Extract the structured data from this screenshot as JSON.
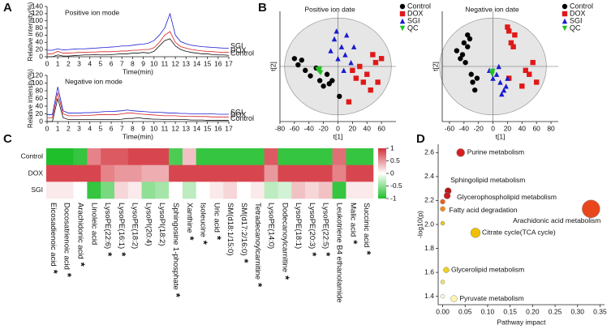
{
  "chart_data": [
    {
      "type": "line",
      "panel": "A",
      "title": "Positive ion mode",
      "x_label": "Time(min)",
      "y_label": "Relative intensity(%)",
      "x": [
        0,
        0.5,
        1,
        1.5,
        2,
        2.5,
        3,
        3.5,
        4,
        4.5,
        5,
        5.5,
        6,
        6.5,
        7,
        7.5,
        8,
        8.5,
        9,
        9.5,
        10,
        10.5,
        11,
        11.5,
        12,
        12.5,
        13,
        13.5,
        14,
        14.5,
        15,
        15.5,
        16,
        16.5,
        17
      ],
      "xlim": [
        0,
        17
      ],
      "xticks": [
        0,
        1,
        2,
        3,
        4,
        5,
        6,
        7,
        8,
        9,
        10,
        11,
        12,
        13,
        14,
        15,
        16,
        17
      ],
      "ylim": [
        0,
        140
      ],
      "yticks": [
        0,
        20,
        40,
        60,
        80,
        100,
        120,
        140
      ],
      "series": [
        {
          "name": "SGI",
          "color": "#1f1fd6",
          "values": [
            18,
            18,
            22,
            19,
            20,
            21,
            22,
            22,
            23,
            24,
            25,
            26,
            27,
            28,
            30,
            30,
            32,
            34,
            35,
            38,
            45,
            60,
            80,
            120,
            60,
            42,
            36,
            32,
            30,
            28,
            27,
            26,
            25,
            24,
            24
          ]
        },
        {
          "name": "DOX",
          "color": "#d62020",
          "values": [
            8,
            8,
            15,
            10,
            10,
            11,
            12,
            12,
            13,
            13,
            14,
            14,
            14,
            15,
            16,
            16,
            18,
            18,
            20,
            20,
            25,
            40,
            60,
            70,
            40,
            28,
            24,
            20,
            18,
            16,
            15,
            14,
            13,
            12,
            12
          ]
        },
        {
          "name": "Control",
          "color": "#111111",
          "values": [
            0,
            0,
            5,
            2,
            2,
            3,
            4,
            5,
            5,
            6,
            5,
            5,
            6,
            7,
            8,
            8,
            10,
            10,
            12,
            10,
            15,
            30,
            45,
            50,
            30,
            20,
            15,
            12,
            10,
            8,
            8,
            6,
            5,
            5,
            4
          ]
        }
      ]
    },
    {
      "type": "line",
      "title": "Negative ion mode",
      "x_label": "Time(min)",
      "y_label": "Relative intensity(%)",
      "x": [
        0,
        0.5,
        1,
        1.5,
        2,
        2.5,
        3,
        3.5,
        4,
        4.5,
        5,
        5.5,
        6,
        6.5,
        7,
        7.5,
        8,
        8.5,
        9,
        9.5,
        10,
        10.5,
        11,
        11.5,
        12,
        12.5,
        13,
        13.5,
        14,
        14.5,
        15,
        15.5,
        16,
        16.5,
        17
      ],
      "xlim": [
        0,
        17
      ],
      "xticks": [
        0,
        1,
        2,
        3,
        4,
        5,
        6,
        7,
        8,
        9,
        10,
        11,
        12,
        13,
        14,
        15,
        16,
        17
      ],
      "ylim": [
        0,
        120
      ],
      "yticks": [
        0,
        20,
        40,
        60,
        80,
        100,
        120
      ],
      "series": [
        {
          "name": "SGI",
          "color": "#1f1fd6",
          "values": [
            18,
            18,
            90,
            28,
            22,
            22,
            22,
            23,
            23,
            24,
            25,
            26,
            26,
            27,
            28,
            30,
            28,
            27,
            26,
            25,
            24,
            24,
            23,
            22,
            22,
            21,
            21,
            20,
            20,
            20,
            20,
            20,
            19,
            19,
            19
          ]
        },
        {
          "name": "DOX",
          "color": "#d62020",
          "values": [
            10,
            10,
            75,
            20,
            15,
            15,
            15,
            16,
            16,
            17,
            18,
            18,
            18,
            18,
            20,
            22,
            22,
            20,
            19,
            18,
            17,
            16,
            15,
            15,
            15,
            14,
            14,
            14,
            13,
            13,
            13,
            12,
            12,
            12,
            12
          ]
        },
        {
          "name": "Control",
          "color": "#111111",
          "values": [
            0,
            0,
            60,
            10,
            5,
            5,
            5,
            5,
            5,
            5,
            5,
            5,
            5,
            5,
            6,
            8,
            8,
            10,
            8,
            7,
            6,
            6,
            5,
            5,
            5,
            5,
            5,
            4,
            4,
            4,
            3,
            3,
            3,
            3,
            3
          ]
        }
      ]
    },
    {
      "type": "scatter",
      "panel": "B",
      "title": "Positive ion date",
      "x_label": "t[1]",
      "y_label": "t[2]",
      "xlim": [
        -80,
        80
      ],
      "xticks": [
        -80,
        -60,
        -40,
        -20,
        0,
        20,
        40,
        60
      ],
      "ylim": [
        -70,
        70
      ],
      "legend": "right",
      "series": [
        {
          "name": "Control",
          "color": "#000000",
          "marker": "circle",
          "x": [
            -60,
            -55,
            -50,
            -45,
            -38,
            -30,
            -25,
            -20,
            -15,
            -12,
            -8,
            2
          ],
          "values": [
            10,
            2,
            8,
            -5,
            -12,
            -2,
            -18,
            -25,
            -10,
            -22,
            -18,
            -38
          ]
        },
        {
          "name": "DOX",
          "color": "#e01818",
          "marker": "square",
          "x": [
            20,
            25,
            30,
            35,
            40,
            45,
            48,
            52,
            55,
            60,
            15
          ],
          "values": [
            -5,
            -15,
            0,
            -20,
            -10,
            -30,
            15,
            5,
            -20,
            10,
            -45
          ]
        },
        {
          "name": "SGI",
          "color": "#1a1ad0",
          "marker": "triangle",
          "x": [
            -10,
            -5,
            0,
            5,
            10,
            12,
            18,
            22,
            -2,
            8
          ],
          "values": [
            20,
            35,
            10,
            25,
            15,
            40,
            5,
            25,
            45,
            -5
          ]
        },
        {
          "name": "QC",
          "color": "#22c022",
          "marker": "triangle-down",
          "x": [
            -28,
            -26,
            -25,
            -24
          ],
          "values": [
            -4,
            -6,
            -3,
            -8
          ]
        }
      ]
    },
    {
      "type": "scatter",
      "title": "Negative ion date",
      "x_label": "t[1]",
      "y_label": "t[2]",
      "xlim": [
        -70,
        90
      ],
      "xticks": [
        -60,
        -40,
        -20,
        0,
        20,
        40,
        60,
        80
      ],
      "ylim": [
        -70,
        70
      ],
      "legend": "right",
      "series": [
        {
          "name": "Control",
          "color": "#000000",
          "marker": "circle",
          "x": [
            -50,
            -45,
            -42,
            -40,
            -38,
            -35,
            -32,
            -30,
            -28,
            -25,
            -22,
            -35
          ],
          "values": [
            20,
            10,
            15,
            30,
            5,
            25,
            35,
            -10,
            -20,
            -30,
            -15,
            40
          ]
        },
        {
          "name": "DOX",
          "color": "#e01818",
          "marker": "square",
          "x": [
            20,
            22,
            25,
            28,
            30,
            45,
            50,
            55,
            60,
            22,
            40
          ],
          "values": [
            50,
            45,
            30,
            25,
            40,
            -5,
            -10,
            5,
            -20,
            -15,
            -25
          ]
        },
        {
          "name": "SGI",
          "color": "#1a1ad0",
          "marker": "triangle",
          "x": [
            -5,
            0,
            5,
            10,
            15,
            18,
            8,
            12,
            20
          ],
          "values": [
            -5,
            -15,
            -10,
            -20,
            -30,
            -25,
            0,
            -35,
            -15
          ]
        },
        {
          "name": "QC",
          "color": "#22c022",
          "marker": "triangle-down",
          "x": [
            -2,
            -1,
            0
          ],
          "values": [
            -8,
            -10,
            -6
          ]
        }
      ]
    },
    {
      "type": "heatmap",
      "panel": "C",
      "rows": [
        "Control",
        "DOX",
        "SGI"
      ],
      "columns": [
        "Eicosadienoic acid",
        "Docosatrienoic acid",
        "Arachidonic acid",
        "Linoleic acid",
        "LysoPE(22:6)",
        "LysoPE(16:1)",
        "LysoPE(18:2)",
        "LysoPI(20:4)",
        "LysoPI(18:2)",
        "Sphingosine 1-phosphate",
        "Xanthine",
        "Isoleucine",
        "Uric acid",
        "SM(d18:1/15:0)",
        "SM(d17:2/16:0)",
        "Tetradecanoylcarnitine",
        "LysoPE(14:0)",
        "Dodecanoylcarnitine",
        "LysoPE(18:1)",
        "LysoPE(20:3)",
        "LysoPE(22:5)",
        "Leukotriene B4 ethanolamide",
        "Malic acid",
        "Succinic acid"
      ],
      "significance_mark": "*",
      "significant": [
        true,
        true,
        true,
        false,
        true,
        true,
        false,
        false,
        false,
        true,
        true,
        true,
        true,
        false,
        true,
        true,
        false,
        true,
        false,
        true,
        true,
        false,
        true,
        true
      ],
      "values": [
        [
          -1,
          -1,
          -0.9,
          0.6,
          0.8,
          0.8,
          0.9,
          0.9,
          0.9,
          -0.8,
          0.3,
          -0.9,
          -0.9,
          -0.9,
          -0.9,
          -0.9,
          0.8,
          -0.9,
          -0.9,
          -0.9,
          -0.9,
          0.7,
          -0.9,
          -0.9
        ],
        [
          0.9,
          0.9,
          0.9,
          0.9,
          0.6,
          0.5,
          0.5,
          0.4,
          0.4,
          0.9,
          0.9,
          0.9,
          0.9,
          0.9,
          0.9,
          0.9,
          0.5,
          0.9,
          0.9,
          0.9,
          0.9,
          0.6,
          0.9,
          0.9
        ],
        [
          0.1,
          0.1,
          0,
          -0.9,
          -0.6,
          0.2,
          0.1,
          -0.5,
          -0.4,
          0,
          -0.3,
          0,
          0.1,
          0.2,
          0,
          0.1,
          -0.3,
          -0.2,
          0.3,
          0.2,
          0.3,
          -0.9,
          0.1,
          0.1
        ]
      ],
      "clim": [
        -1,
        1
      ],
      "cticks": [
        1,
        0.5,
        0,
        -0.5,
        -1
      ],
      "colors": {
        "low": "#1fbf2b",
        "mid": "#ffffff",
        "high": "#d3313b"
      }
    },
    {
      "type": "bubble",
      "panel": "D",
      "x_label": "Pathway impact",
      "y_label": "-log10(p)",
      "xlim": [
        -0.01,
        0.36
      ],
      "xticks": [
        {
          "value": 0,
          "label": "0.00"
        },
        0.05,
        {
          "value": 0.1,
          "label": "0.10"
        },
        0.15,
        {
          "value": 0.2,
          "label": "0.20"
        },
        0.25,
        {
          "value": 0.3,
          "label": "0.30"
        },
        0.35
      ],
      "ylim": [
        1.33,
        2.67
      ],
      "yticks": [
        1.4,
        1.6,
        1.8,
        {
          "value": 2,
          "label": "2.0"
        },
        2.2,
        2.4,
        2.6
      ],
      "labels": [
        "Purine metabolism",
        "Sphingolipid metabolism",
        "Glycerophospholipid metabolism",
        "Fatty acid degradation",
        null,
        "Arachidonic acid metabolism",
        "Citrate cycle(TCA cycle)",
        null,
        "Glycerolipid metabolism",
        null,
        "Pyruvate metabolism",
        null
      ],
      "x": [
        0.04,
        0.012,
        0.01,
        0,
        0,
        0.33,
        0.073,
        0,
        0.008,
        0,
        0.025,
        0
      ],
      "values": [
        2.6,
        2.28,
        2.24,
        2.19,
        2.13,
        2.13,
        1.93,
        2.01,
        1.62,
        1.52,
        1.38,
        1.4
      ],
      "sizes": [
        5,
        4,
        4,
        3,
        3,
        11,
        6,
        2.5,
        3.5,
        2.5,
        4,
        2.5
      ],
      "colors": [
        "#d62020",
        "#b81418",
        "#c81c20",
        "#e8641c",
        "#f08c1c",
        "#e8461c",
        "#f0c000",
        "#e8c81c",
        "#f0d020",
        "#f2e070",
        "#fff5b0",
        "#fffbe0"
      ]
    }
  ]
}
